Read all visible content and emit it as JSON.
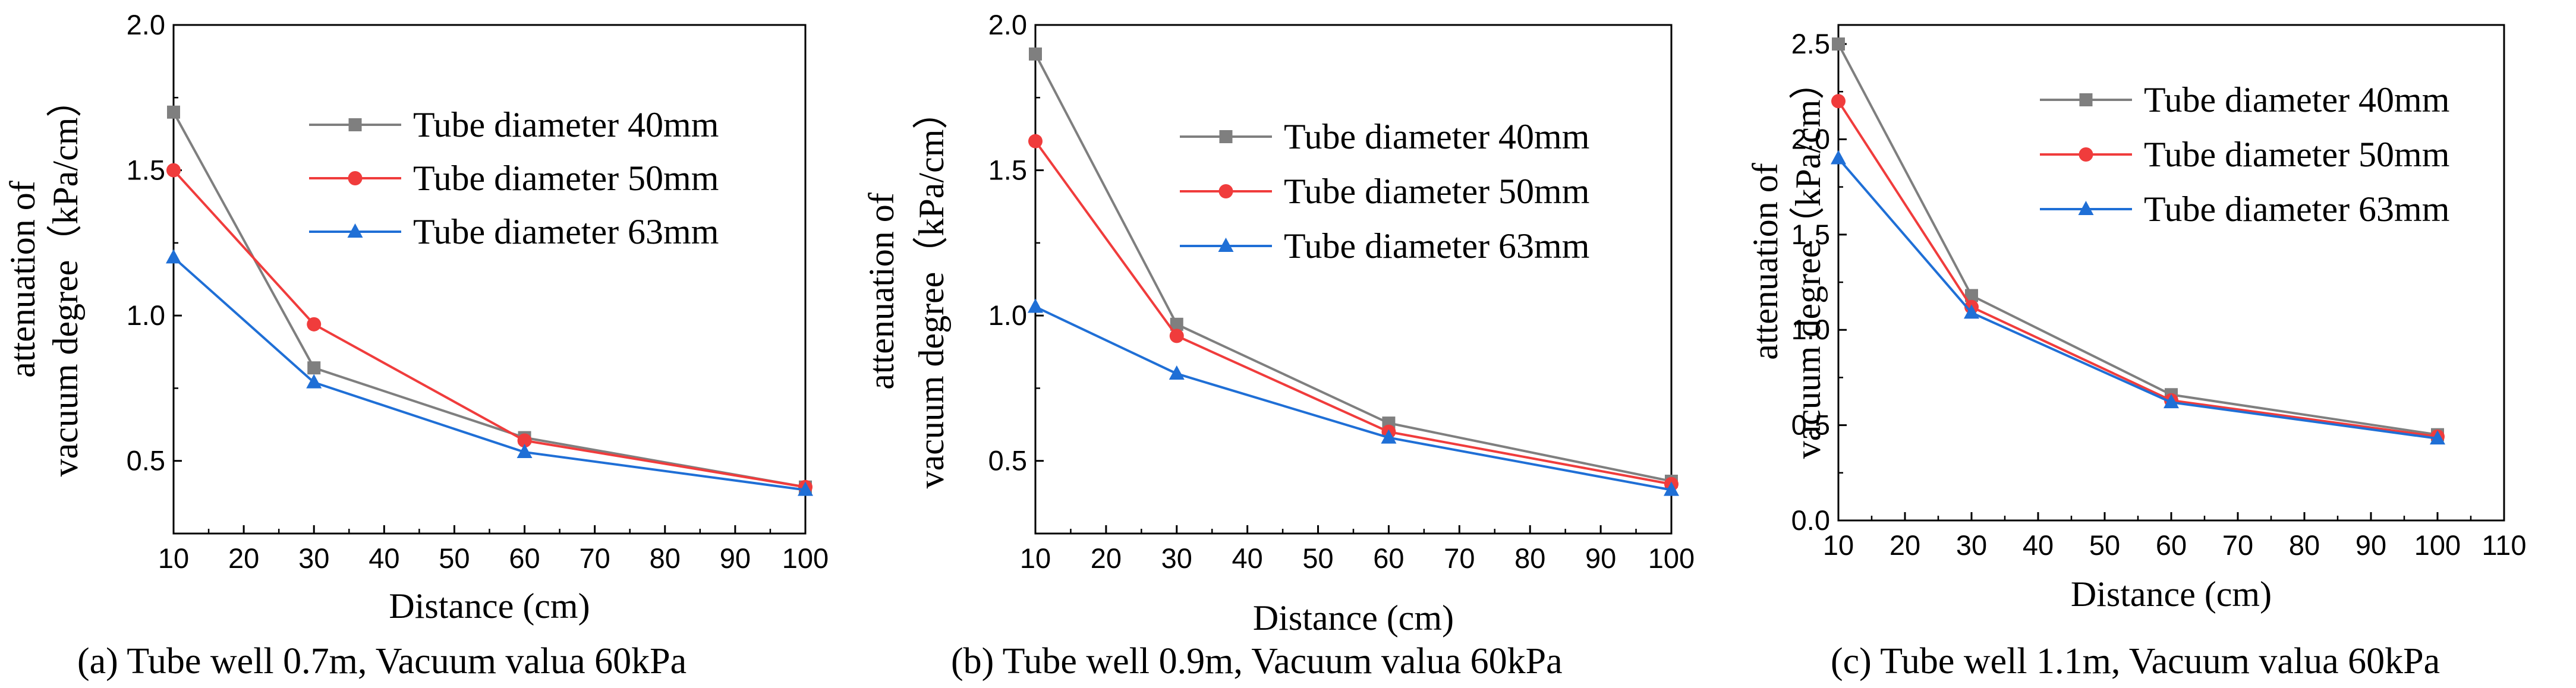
{
  "chart_data": [
    {
      "type": "line",
      "title": "",
      "caption": "(a)  Tube well 0.7m, Vacuum valua 60kPa",
      "xlabel": "Distance (cm)",
      "ylabel": [
        "attenuation of",
        "vacuum degree（kPa/cm）"
      ],
      "xlim": [
        10,
        100
      ],
      "ylim": [
        0.25,
        2.0
      ],
      "xticks": [
        10,
        20,
        30,
        40,
        50,
        60,
        70,
        80,
        90,
        100
      ],
      "yticks": [
        0.5,
        1.0,
        1.5,
        2.0
      ],
      "ytick_labels": [
        "0.5",
        "1.0",
        "1.5",
        "2.0"
      ],
      "x": [
        10,
        30,
        60,
        100
      ],
      "legend_position": "top-right",
      "series": [
        {
          "name": "Tube diameter 40mm",
          "color": "#7f7f7f",
          "marker": "square",
          "values": [
            1.7,
            0.82,
            0.58,
            0.41
          ]
        },
        {
          "name": "Tube diameter 50mm",
          "color": "#f03c3c",
          "marker": "circle",
          "values": [
            1.5,
            0.97,
            0.57,
            0.41
          ]
        },
        {
          "name": "Tube diameter 63mm",
          "color": "#1f6fd6",
          "marker": "triangle",
          "values": [
            1.2,
            0.77,
            0.53,
            0.4
          ]
        }
      ]
    },
    {
      "type": "line",
      "title": "",
      "caption": "(b)  Tube well 0.9m, Vacuum valua 60kPa",
      "xlabel": "Distance (cm)",
      "ylabel": [
        "attenuation of",
        "vacuum degree（kPa/cm）"
      ],
      "xlim": [
        10,
        100
      ],
      "ylim": [
        0.25,
        2.0
      ],
      "xticks": [
        10,
        20,
        30,
        40,
        50,
        60,
        70,
        80,
        90,
        100
      ],
      "yticks": [
        0.5,
        1.0,
        1.5,
        2.0
      ],
      "ytick_labels": [
        "0.5",
        "1.0",
        "1.5",
        "2.0"
      ],
      "x": [
        10,
        30,
        60,
        100
      ],
      "legend_position": "top-right",
      "series": [
        {
          "name": "Tube diameter 40mm",
          "color": "#7f7f7f",
          "marker": "square",
          "values": [
            1.9,
            0.97,
            0.63,
            0.43
          ]
        },
        {
          "name": "Tube diameter 50mm",
          "color": "#f03c3c",
          "marker": "circle",
          "values": [
            1.6,
            0.93,
            0.6,
            0.42
          ]
        },
        {
          "name": "Tube diameter 63mm",
          "color": "#1f6fd6",
          "marker": "triangle",
          "values": [
            1.03,
            0.8,
            0.58,
            0.4
          ]
        }
      ]
    },
    {
      "type": "line",
      "title": "",
      "caption": "(c)  Tube well 1.1m, Vacuum valua 60kPa",
      "xlabel": "Distance (cm)",
      "ylabel": [
        "attenuation of",
        "vacuum degree（kPa/cm）"
      ],
      "xlim": [
        10,
        110
      ],
      "ylim": [
        0.0,
        2.6
      ],
      "xticks": [
        10,
        20,
        30,
        40,
        50,
        60,
        70,
        80,
        90,
        100,
        110
      ],
      "yticks": [
        0.0,
        0.5,
        1.0,
        1.5,
        2.0,
        2.5
      ],
      "ytick_labels": [
        "0.0",
        "0.5",
        "1.0",
        "1.5",
        "2.0",
        "2.5"
      ],
      "x": [
        10,
        30,
        60,
        100
      ],
      "legend_position": "top-right",
      "series": [
        {
          "name": "Tube diameter 40mm",
          "color": "#7f7f7f",
          "marker": "square",
          "values": [
            2.5,
            1.18,
            0.66,
            0.45
          ]
        },
        {
          "name": "Tube diameter 50mm",
          "color": "#f03c3c",
          "marker": "circle",
          "values": [
            2.2,
            1.12,
            0.63,
            0.44
          ]
        },
        {
          "name": "Tube diameter 63mm",
          "color": "#1f6fd6",
          "marker": "triangle",
          "values": [
            1.9,
            1.09,
            0.62,
            0.43
          ]
        }
      ]
    }
  ]
}
